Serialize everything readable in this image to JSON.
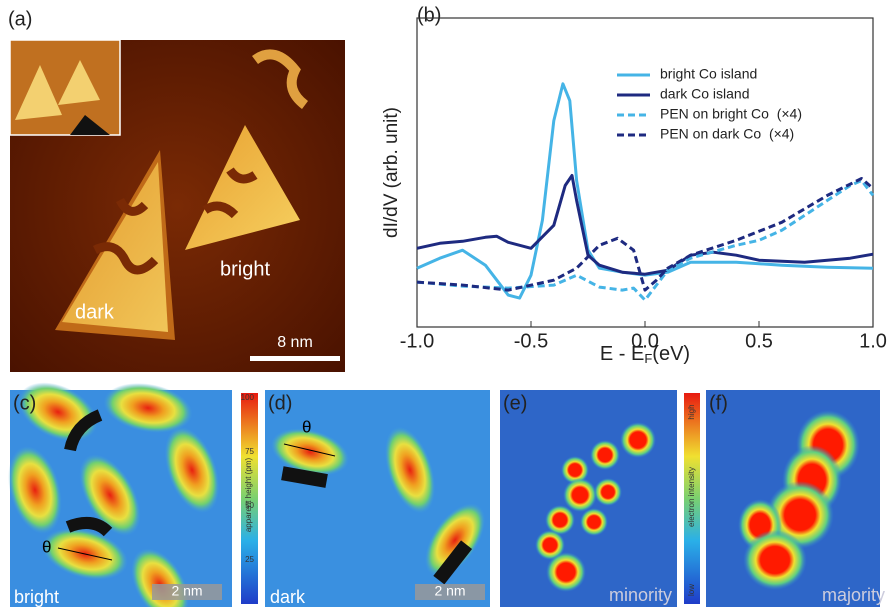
{
  "chart_data": {
    "type": "line",
    "x_label": {
      "main": "E - E",
      "sub": "F",
      "unit": "(eV)"
    },
    "y_label": "dI/dV (arb. unit)",
    "xlim": [
      -1.0,
      1.0
    ],
    "ylim": [
      0,
      3.1
    ],
    "xticks": [
      {
        "value": -1.0,
        "label": "-1.0"
      },
      -0.5,
      {
        "value": 0.0,
        "label": "0.0"
      },
      0.5,
      {
        "value": 1.0,
        "label": "1.0"
      }
    ],
    "series": [
      {
        "name": "bright Co island",
        "color": "#45b4e6",
        "dashed": false,
        "x": [
          -1.0,
          -0.9,
          -0.8,
          -0.7,
          -0.6,
          -0.55,
          -0.5,
          -0.45,
          -0.4,
          -0.36,
          -0.33,
          -0.3,
          -0.25,
          -0.2,
          -0.1,
          0,
          0.1,
          0.2,
          0.4,
          0.6,
          0.8,
          1.0
        ],
        "values": [
          0.59,
          0.69,
          0.77,
          0.62,
          0.32,
          0.29,
          0.52,
          1.07,
          2.07,
          2.44,
          2.27,
          1.47,
          0.77,
          0.59,
          0.55,
          0.52,
          0.55,
          0.65,
          0.65,
          0.62,
          0.6,
          0.59
        ]
      },
      {
        "name": "dark Co island",
        "color": "#1e2a80",
        "dashed": false,
        "x": [
          -1.0,
          -0.9,
          -0.8,
          -0.7,
          -0.65,
          -0.6,
          -0.5,
          -0.4,
          -0.35,
          -0.32,
          -0.3,
          -0.25,
          -0.2,
          -0.1,
          0,
          0.1,
          0.2,
          0.3,
          0.4,
          0.5,
          0.7,
          0.9,
          1.0
        ],
        "values": [
          0.79,
          0.84,
          0.86,
          0.9,
          0.91,
          0.85,
          0.79,
          1.02,
          1.42,
          1.52,
          1.27,
          0.72,
          0.62,
          0.55,
          0.53,
          0.57,
          0.72,
          0.75,
          0.72,
          0.67,
          0.65,
          0.69,
          0.73
        ]
      },
      {
        "name": "PEN on bright Co  (×4)",
        "color": "#45b4e6",
        "dashed": true,
        "x": [
          -1.0,
          -0.8,
          -0.6,
          -0.4,
          -0.3,
          -0.2,
          -0.1,
          -0.05,
          0,
          0.05,
          0.1,
          0.2,
          0.4,
          0.5,
          0.6,
          0.7,
          0.8,
          0.9,
          0.95,
          1.0
        ],
        "values": [
          0.45,
          0.41,
          0.39,
          0.42,
          0.52,
          0.4,
          0.37,
          0.39,
          0.27,
          0.42,
          0.57,
          0.69,
          0.82,
          0.87,
          0.97,
          1.12,
          1.27,
          1.42,
          1.47,
          1.32
        ]
      },
      {
        "name": "PEN on dark Co  (×4)",
        "color": "#1e2a80",
        "dashed": true,
        "x": [
          -1.0,
          -0.8,
          -0.6,
          -0.4,
          -0.3,
          -0.2,
          -0.12,
          -0.05,
          0,
          0.05,
          0.1,
          0.2,
          0.4,
          0.6,
          0.8,
          0.95,
          1.0
        ],
        "values": [
          0.45,
          0.42,
          0.37,
          0.47,
          0.59,
          0.82,
          0.89,
          0.77,
          0.37,
          0.47,
          0.59,
          0.72,
          0.87,
          1.05,
          1.32,
          1.49,
          1.39
        ]
      }
    ]
  },
  "figure": {
    "a": {
      "label": "(a)",
      "dark": "dark",
      "bright": "bright",
      "scale": "8 nm"
    },
    "b": {
      "label": "(b)"
    },
    "c": {
      "label": "(c)",
      "theta": "θ",
      "name": "bright",
      "scale": "2 nm",
      "colorbar_title": "apparent height (pm)",
      "colorbar_ticks": [
        "100",
        "75",
        "50",
        "25"
      ]
    },
    "d": {
      "label": "(d)",
      "theta": "θ",
      "name": "dark",
      "scale": "2 nm"
    },
    "e": {
      "label": "(e)",
      "name": "minority",
      "colorbar_title": "electron intensity",
      "high": "high",
      "low": "low"
    },
    "f": {
      "label": "(f)",
      "name": "majority"
    }
  }
}
